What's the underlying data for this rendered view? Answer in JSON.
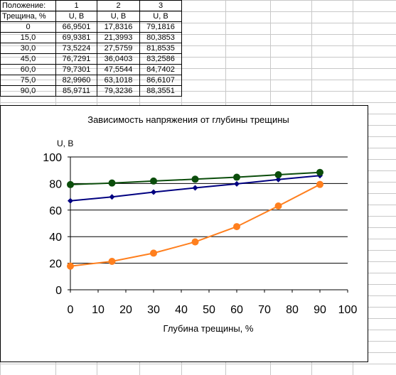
{
  "table": {
    "header_row1": [
      "Положение:",
      "1",
      "2",
      "3"
    ],
    "header_row2": [
      "Трещина, %",
      "U, В",
      "U, В",
      "U, В"
    ],
    "rows": [
      [
        "0",
        "66,9501",
        "17,8316",
        "79,1816"
      ],
      [
        "15,0",
        "69,9381",
        "21,3993",
        "80,3853"
      ],
      [
        "30,0",
        "73,5224",
        "27,5759",
        "81,8535"
      ],
      [
        "45,0",
        "76,7291",
        "36,0403",
        "83,2586"
      ],
      [
        "60,0",
        "79,7301",
        "47,5544",
        "84,7402"
      ],
      [
        "75,0",
        "82,9960",
        "63,1018",
        "86,6107"
      ],
      [
        "90,0",
        "85,9711",
        "79,3236",
        "88,3551"
      ]
    ]
  },
  "chart_data": {
    "type": "line",
    "title": "Зависимость напряжения от глубины трещины",
    "xlabel": "Глубина трещины, %",
    "ylabel": "U, В",
    "xlim": [
      0,
      100
    ],
    "ylim": [
      0,
      100
    ],
    "x_ticks": [
      "0",
      "10",
      "20",
      "30",
      "40",
      "50",
      "60",
      "70",
      "80",
      "90",
      "100"
    ],
    "y_ticks": [
      "0",
      "20",
      "40",
      "60",
      "80",
      "100"
    ],
    "grid": "horizontal",
    "legend": "none",
    "x": [
      0,
      15,
      30,
      45,
      60,
      75,
      90
    ],
    "series": [
      {
        "values": [
          66.9501,
          69.9381,
          73.5224,
          76.7291,
          79.7301,
          82.996,
          85.9711
        ],
        "color": "#000080",
        "marker": "diamond"
      },
      {
        "values": [
          17.8316,
          21.3993,
          27.5759,
          36.0403,
          47.5544,
          63.1018,
          79.3236
        ],
        "color": "#ff7f1e",
        "marker": "circle"
      },
      {
        "values": [
          79.1816,
          80.3853,
          81.8535,
          83.2586,
          84.7402,
          86.6107,
          88.3551
        ],
        "color": "#0b4d0b",
        "marker": "circle"
      }
    ]
  }
}
